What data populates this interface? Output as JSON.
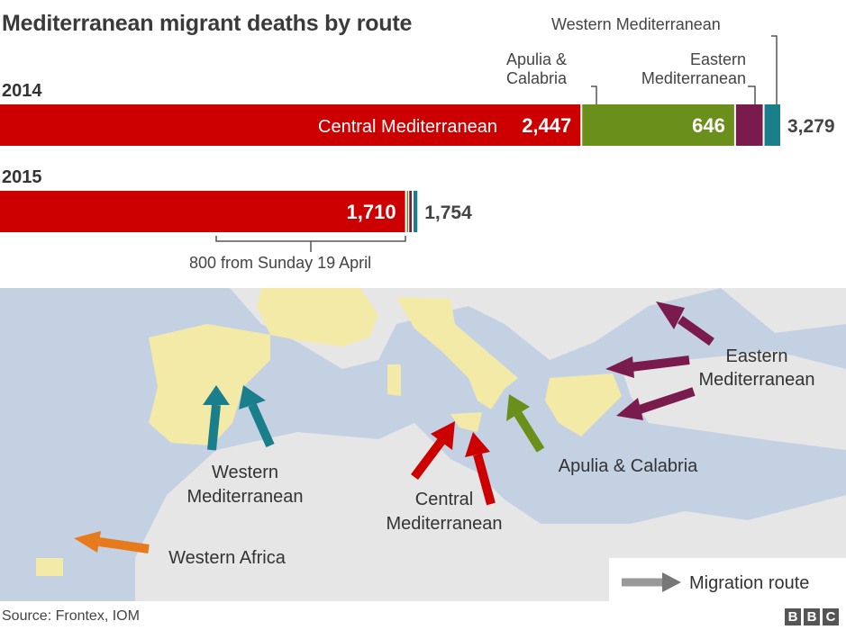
{
  "title": "Mediterranean migrant deaths by route",
  "route_labels": {
    "western_mediterranean": "Western Mediterranean",
    "apulia_calabria": [
      "Apulia &",
      "Calabria"
    ],
    "eastern_mediterranean": [
      "Eastern",
      "Mediterranean"
    ],
    "central_mediterranean": "Central Mediterranean"
  },
  "annotation_2015": "800 from Sunday 19 April",
  "map": {
    "labels": {
      "western_med": [
        "Western",
        "Mediterranean"
      ],
      "central_med": [
        "Central",
        "Mediterranean"
      ],
      "apulia": "Apulia & Calabria",
      "eastern_med": [
        "Eastern",
        "Mediterranean"
      ],
      "western_africa": "Western Africa"
    },
    "legend": "Migration route"
  },
  "source": "Source: Frontex, IOM",
  "logo": "BBC",
  "colors": {
    "central": "#cc0000",
    "apulia": "#6a8f1a",
    "eastern": "#7a1b4e",
    "western": "#1a7f8a",
    "western_africa": "#e87a1e",
    "land": "#f4eaa8",
    "other_land": "#e6e6e6",
    "sea": "#c4d1e3"
  },
  "chart_data": {
    "type": "bar",
    "orientation": "horizontal",
    "stacked": true,
    "title": "Mediterranean migrant deaths by route",
    "categories": [
      "2014",
      "2015"
    ],
    "series": [
      {
        "name": "Central Mediterranean",
        "values": [
          2447,
          1710
        ],
        "value_labels": [
          "2,447",
          "1,710"
        ]
      },
      {
        "name": "Apulia & Calabria",
        "values": [
          646,
          10
        ],
        "value_labels": [
          "646",
          ""
        ]
      },
      {
        "name": "Eastern Mediterranean",
        "values": [
          120,
          18
        ],
        "value_labels": [
          "",
          ""
        ]
      },
      {
        "name": "Western Mediterranean",
        "values": [
          66,
          16
        ],
        "value_labels": [
          "",
          ""
        ]
      }
    ],
    "totals": [
      3279,
      1754
    ],
    "total_labels": [
      "3,279",
      "1,754"
    ]
  }
}
